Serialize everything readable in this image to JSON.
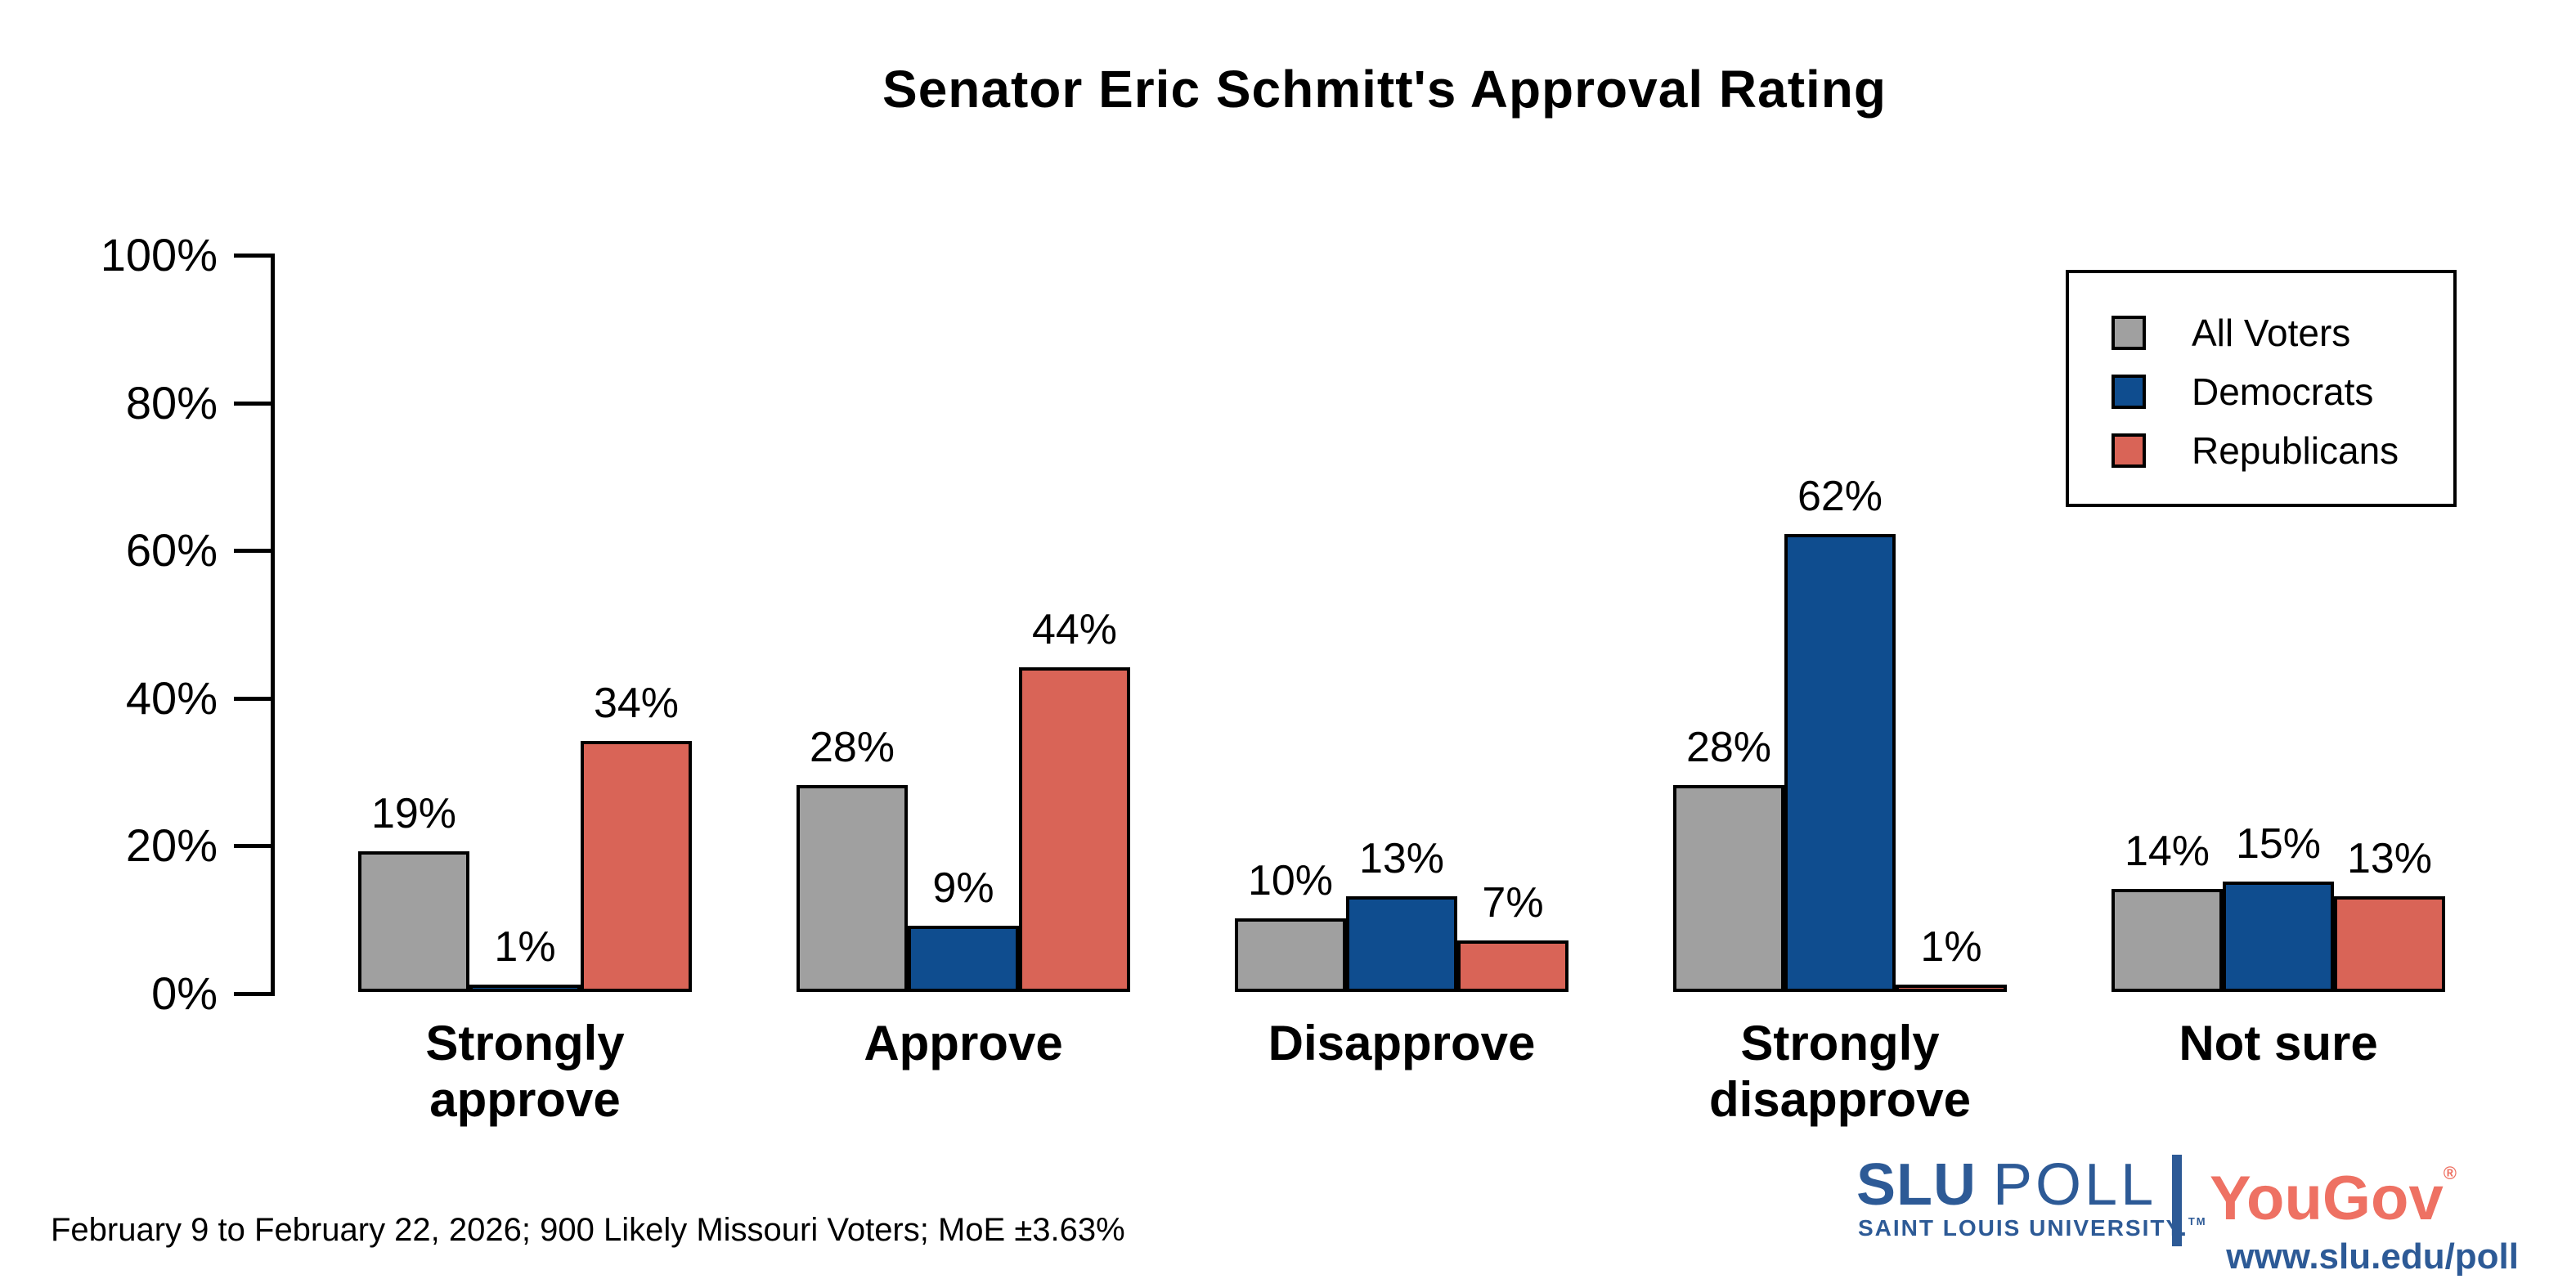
{
  "title": "Senator Eric Schmitt's Approval Rating",
  "footer": "February 9 to February 22, 2026; 900 Likely Missouri Voters; MoE ±3.63%",
  "branding": {
    "slu": "SLU",
    "poll": "POLL",
    "university": "SAINT LOUIS UNIVERSITY.",
    "tm_mark": "TM",
    "yougov": "YouGov",
    "registered_mark": "®",
    "url": "www.slu.edu/poll",
    "slu_blue": "#2D5A96",
    "yougov_coral": "#EE7163"
  },
  "chart_data": {
    "type": "bar",
    "title": "Senator Eric Schmitt's Approval Rating",
    "categories": [
      "Strongly approve",
      "Approve",
      "Disapprove",
      "Strongly disapprove",
      "Not sure"
    ],
    "series": [
      {
        "name": "All Voters",
        "color": "#A0A0A0",
        "values": [
          19,
          28,
          10,
          28,
          14
        ]
      },
      {
        "name": "Democrats",
        "color": "#0F4D8F",
        "values": [
          1,
          9,
          13,
          62,
          15
        ]
      },
      {
        "name": "Republicans",
        "color": "#D96457",
        "values": [
          34,
          44,
          7,
          1,
          13
        ]
      }
    ],
    "xlabel": "",
    "ylabel": "",
    "ylim": [
      0,
      100
    ],
    "yticks": [
      0,
      20,
      40,
      60,
      80,
      100
    ],
    "ytick_format": "{v}%",
    "value_label_format": "{v}%",
    "bar_border_color": "#000000",
    "grid": false,
    "legend_position": "top-right"
  }
}
